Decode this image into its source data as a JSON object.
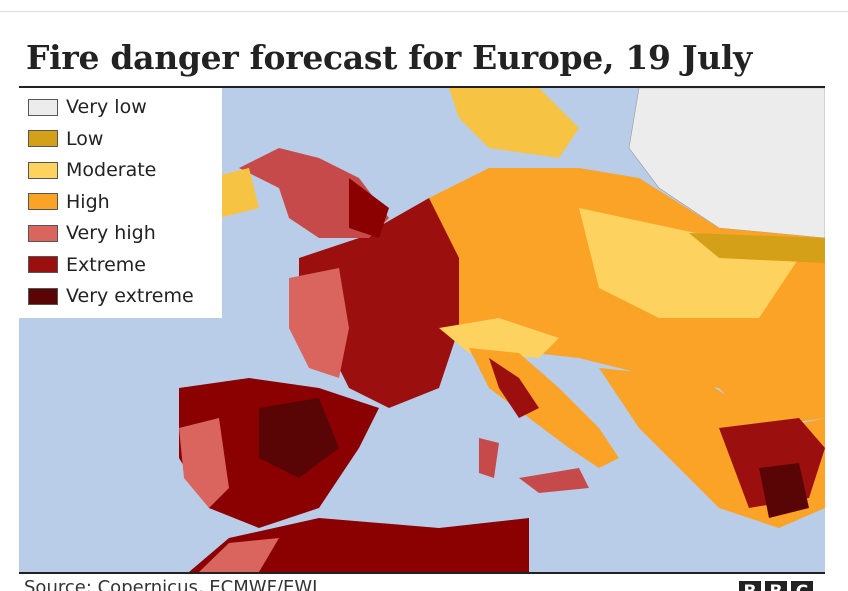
{
  "title": "Fire danger forecast for Europe, 19 July",
  "legend": [
    {
      "label": "Very low",
      "color": "#ececec"
    },
    {
      "label": "Low",
      "color": "#d4a017"
    },
    {
      "label": "Moderate",
      "color": "#fdd25f"
    },
    {
      "label": "High",
      "color": "#fba327"
    },
    {
      "label": "Very high",
      "color": "#d9655e"
    },
    {
      "label": "Extreme",
      "color": "#9c0f0f"
    },
    {
      "label": "Very extreme",
      "color": "#5a0505"
    }
  ],
  "source": "Source: Copernicus, ECMWF/EWI",
  "logo": [
    "B",
    "B",
    "C"
  ]
}
